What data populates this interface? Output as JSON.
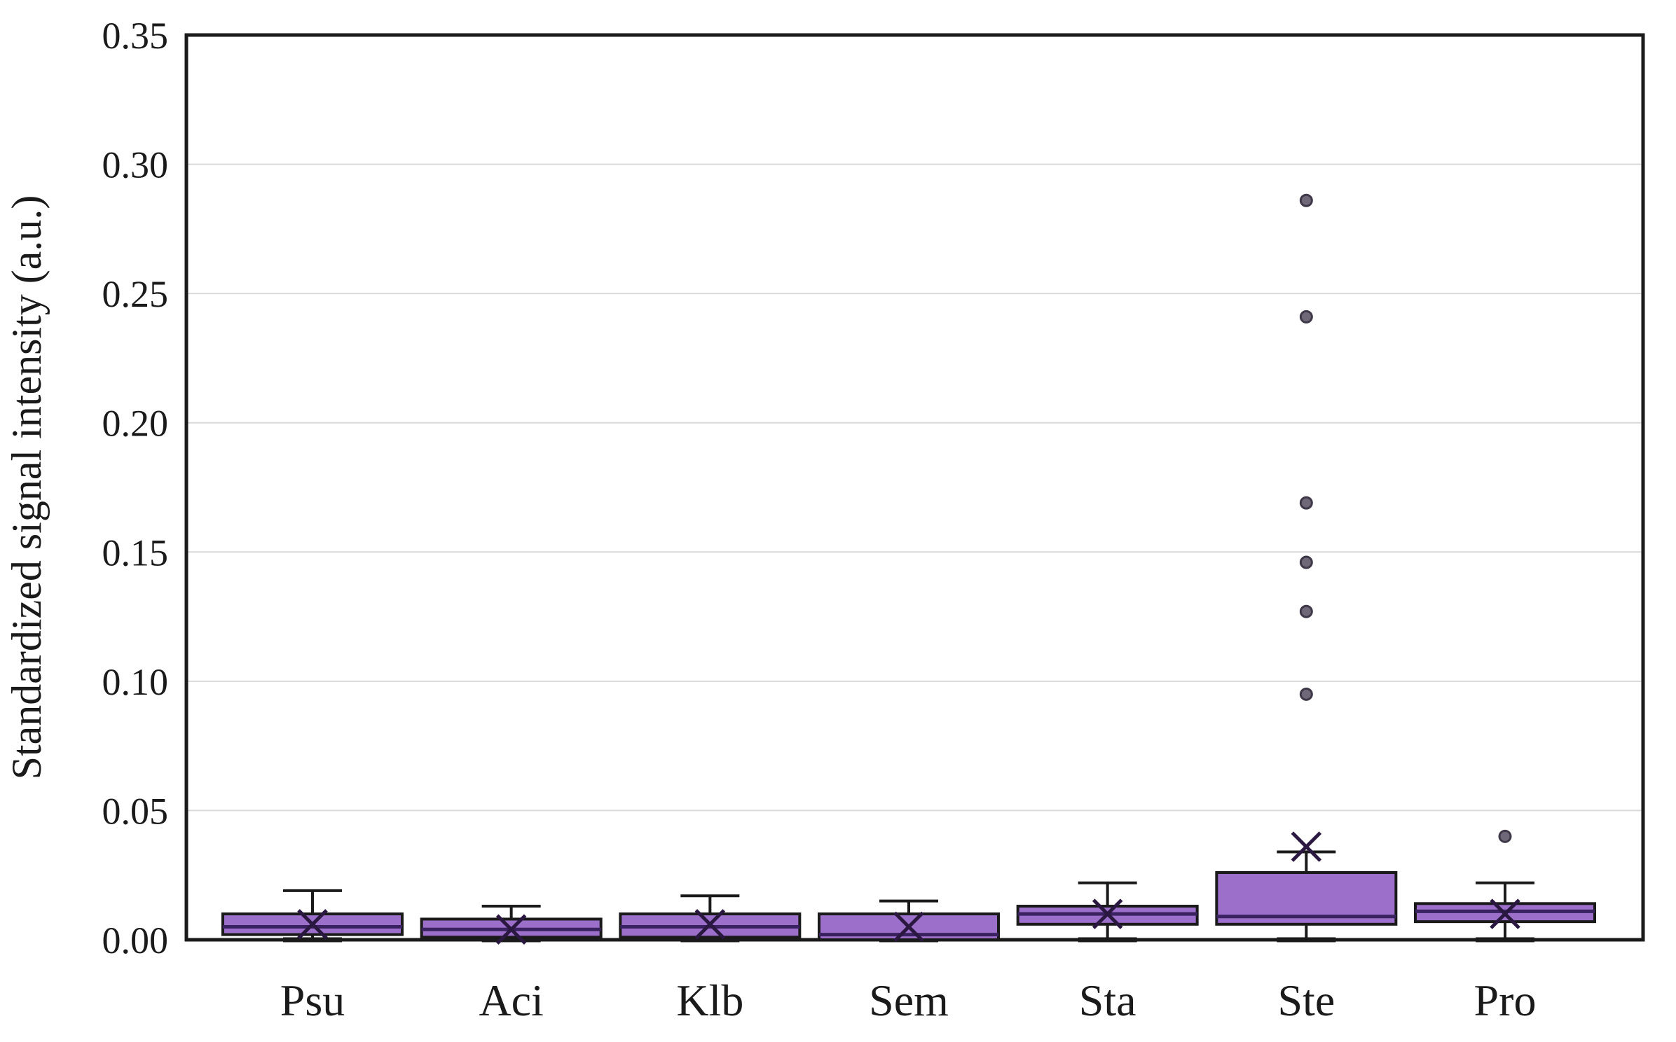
{
  "figure": {
    "background": "#ffffff"
  },
  "chart_data": {
    "type": "boxplot",
    "title": "",
    "xlabel": "",
    "ylabel": "Standardized signal intensity (a.u.)",
    "ylim": [
      0,
      0.35
    ],
    "ytick_step": 0.05,
    "ytick_labels": [
      "0.00",
      "0.05",
      "0.10",
      "0.15",
      "0.20",
      "0.25",
      "0.30",
      "0.35"
    ],
    "grid": "horizontal-light",
    "legend": "none",
    "categories": [
      "Psu",
      "Aci",
      "Klb",
      "Sem",
      "Sta",
      "Ste",
      "Pro"
    ],
    "series": [
      {
        "name": "Psu",
        "whisker_low": 0.0,
        "q1": 0.002,
        "median": 0.005,
        "q3": 0.01,
        "whisker_high": 0.019,
        "mean": 0.006,
        "outliers": []
      },
      {
        "name": "Aci",
        "whisker_low": 0.0,
        "q1": 0.001,
        "median": 0.004,
        "q3": 0.008,
        "whisker_high": 0.013,
        "mean": 0.004,
        "outliers": []
      },
      {
        "name": "Klb",
        "whisker_low": 0.0,
        "q1": 0.001,
        "median": 0.005,
        "q3": 0.01,
        "whisker_high": 0.017,
        "mean": 0.006,
        "outliers": []
      },
      {
        "name": "Sem",
        "whisker_low": 0.0,
        "q1": 0.0,
        "median": 0.002,
        "q3": 0.01,
        "whisker_high": 0.015,
        "mean": 0.005,
        "outliers": []
      },
      {
        "name": "Sta",
        "whisker_low": 0.0,
        "q1": 0.006,
        "median": 0.01,
        "q3": 0.013,
        "whisker_high": 0.022,
        "mean": 0.01,
        "outliers": []
      },
      {
        "name": "Ste",
        "whisker_low": 0.0,
        "q1": 0.006,
        "median": 0.009,
        "q3": 0.026,
        "whisker_high": 0.034,
        "mean": 0.036,
        "outliers": [
          0.095,
          0.127,
          0.146,
          0.169,
          0.241,
          0.286
        ]
      },
      {
        "name": "Pro",
        "whisker_low": 0.0,
        "q1": 0.007,
        "median": 0.011,
        "q3": 0.014,
        "whisker_high": 0.022,
        "mean": 0.01,
        "outliers": [
          0.04
        ]
      }
    ],
    "colors": {
      "box_fill": "#9C6FCB",
      "box_edge": "#1a1a1a",
      "median_line": "#3A2260",
      "mean_marker": "#2A1840",
      "whisker": "#1a1a1a",
      "outlier_fill": "#6E6878",
      "outlier_edge": "#3E3848",
      "gridline": "#D9D9D9",
      "frame": "#1a1a1a",
      "text": "#1a1a1a"
    }
  }
}
